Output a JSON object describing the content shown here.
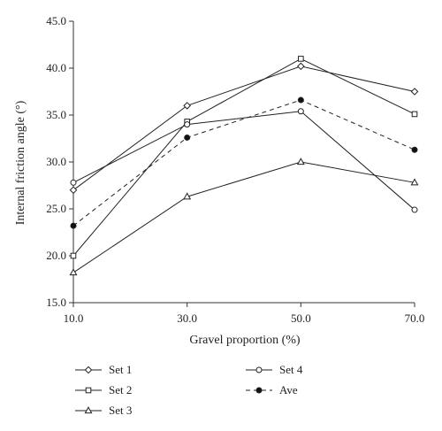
{
  "chart_data": {
    "type": "line",
    "title": "",
    "xlabel": "Gravel proportion (%)",
    "ylabel": "Internal friction angle (°)",
    "x": [
      10,
      30,
      50,
      70
    ],
    "x_tick_labels": [
      "10.0",
      "30.0",
      "50.0",
      "70.0"
    ],
    "xlim": [
      10,
      70
    ],
    "ylim": [
      15,
      45
    ],
    "y_ticks": [
      15,
      20,
      25,
      30,
      35,
      40,
      45
    ],
    "y_tick_labels": [
      "15.0",
      "20.0",
      "25.0",
      "30.0",
      "35.0",
      "40.0",
      "45.0"
    ],
    "grid": false,
    "legend_position": "bottom",
    "series": [
      {
        "name": "Set 1",
        "marker": "diamond",
        "dash": false,
        "values": [
          27.0,
          36.0,
          40.2,
          37.5
        ]
      },
      {
        "name": "Set 2",
        "marker": "square",
        "dash": false,
        "values": [
          20.0,
          34.3,
          41.0,
          35.1
        ]
      },
      {
        "name": "Set 3",
        "marker": "triangle",
        "dash": false,
        "values": [
          18.2,
          26.3,
          30.0,
          27.8
        ]
      },
      {
        "name": "Set 4",
        "marker": "circle-open",
        "dash": false,
        "values": [
          27.8,
          34.0,
          35.4,
          24.9
        ]
      },
      {
        "name": "Ave",
        "marker": "circle-filled",
        "dash": true,
        "values": [
          23.2,
          32.6,
          36.6,
          31.3
        ]
      }
    ]
  }
}
